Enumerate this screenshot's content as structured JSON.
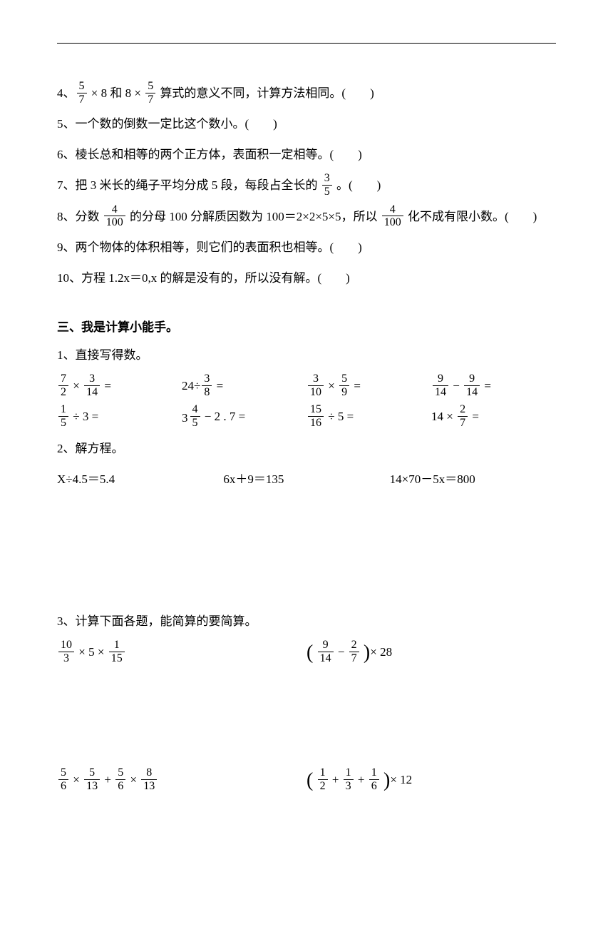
{
  "q4_pre": "4、",
  "q4_mid1": " × 8 和 8 × ",
  "q4_post": " 算式的意义不同，计算方法相同。(　　)",
  "q5": "5、一个数的倒数一定比这个数小。(　　)",
  "q6": "6、棱长总和相等的两个正方体，表面积一定相等。(　　)",
  "q7_pre": "7、把 3 米长的绳子平均分成 5 段，每段占全长的 ",
  "q7_post": " 。(　　)",
  "q8_pre": "8、分数 ",
  "q8_mid": " 的分母 100 分解质因数为 100＝2×2×5×5，所以 ",
  "q8_post": " 化不成有限小数。(　　)",
  "q9": "9、两个物体的体积相等，则它们的表面积也相等。(　　)",
  "q10": "10、方程 1.2x＝0,x 的解是没有的，所以没有解。(　　)",
  "section3_title": "三、我是计算小能手。",
  "sub1_title": "1、直接写得数。",
  "sub2_title": "2、解方程。",
  "eq1": "X÷4.5＝5.4",
  "eq2": "6x＋9＝135",
  "eq3": "14×70－5x＝800",
  "sub3_title": "3、计算下面各题，能简算的要简算。",
  "f": {
    "5_7": {
      "n": "5",
      "d": "7"
    },
    "3_5": {
      "n": "3",
      "d": "5"
    },
    "4_100": {
      "n": "4",
      "d": "100"
    },
    "7_2": {
      "n": "7",
      "d": "2"
    },
    "3_14": {
      "n": "3",
      "d": "14"
    },
    "3_8": {
      "n": "3",
      "d": "8"
    },
    "3_10": {
      "n": "3",
      "d": "10"
    },
    "5_9": {
      "n": "5",
      "d": "9"
    },
    "9_14": {
      "n": "9",
      "d": "14"
    },
    "1_5": {
      "n": "1",
      "d": "5"
    },
    "4_5": {
      "n": "4",
      "d": "5"
    },
    "15_16": {
      "n": "15",
      "d": "16"
    },
    "2_7": {
      "n": "2",
      "d": "7"
    },
    "10_3": {
      "n": "10",
      "d": "3"
    },
    "1_15": {
      "n": "1",
      "d": "15"
    },
    "5_6": {
      "n": "5",
      "d": "6"
    },
    "5_13": {
      "n": "5",
      "d": "13"
    },
    "8_13": {
      "n": "8",
      "d": "13"
    },
    "1_2": {
      "n": "1",
      "d": "2"
    },
    "1_3": {
      "n": "1",
      "d": "3"
    },
    "1_6": {
      "n": "1",
      "d": "6"
    }
  },
  "calc": {
    "r1c2_pre": "24÷",
    "r1_eq": " =",
    "r2c1_suf": " ÷ 3  =",
    "r2c2_pre": "3 ",
    "r2c2_suf": " − 2 . 7  =",
    "r2c3_suf": " ÷ 5  =",
    "r2c4_pre": "14  × ",
    "r2c4_suf": " ="
  },
  "simp": {
    "s1_mid1": " ×  5  × ",
    "s2_pre": "",
    "s2_mid": " − ",
    "s2_post": "×  28",
    "s3_mid1": " × ",
    "s3_mid2": "  +  ",
    "s3_mid3": " × ",
    "s4_mid1": " + ",
    "s4_mid2": " + ",
    "s4_post": "×  12"
  }
}
